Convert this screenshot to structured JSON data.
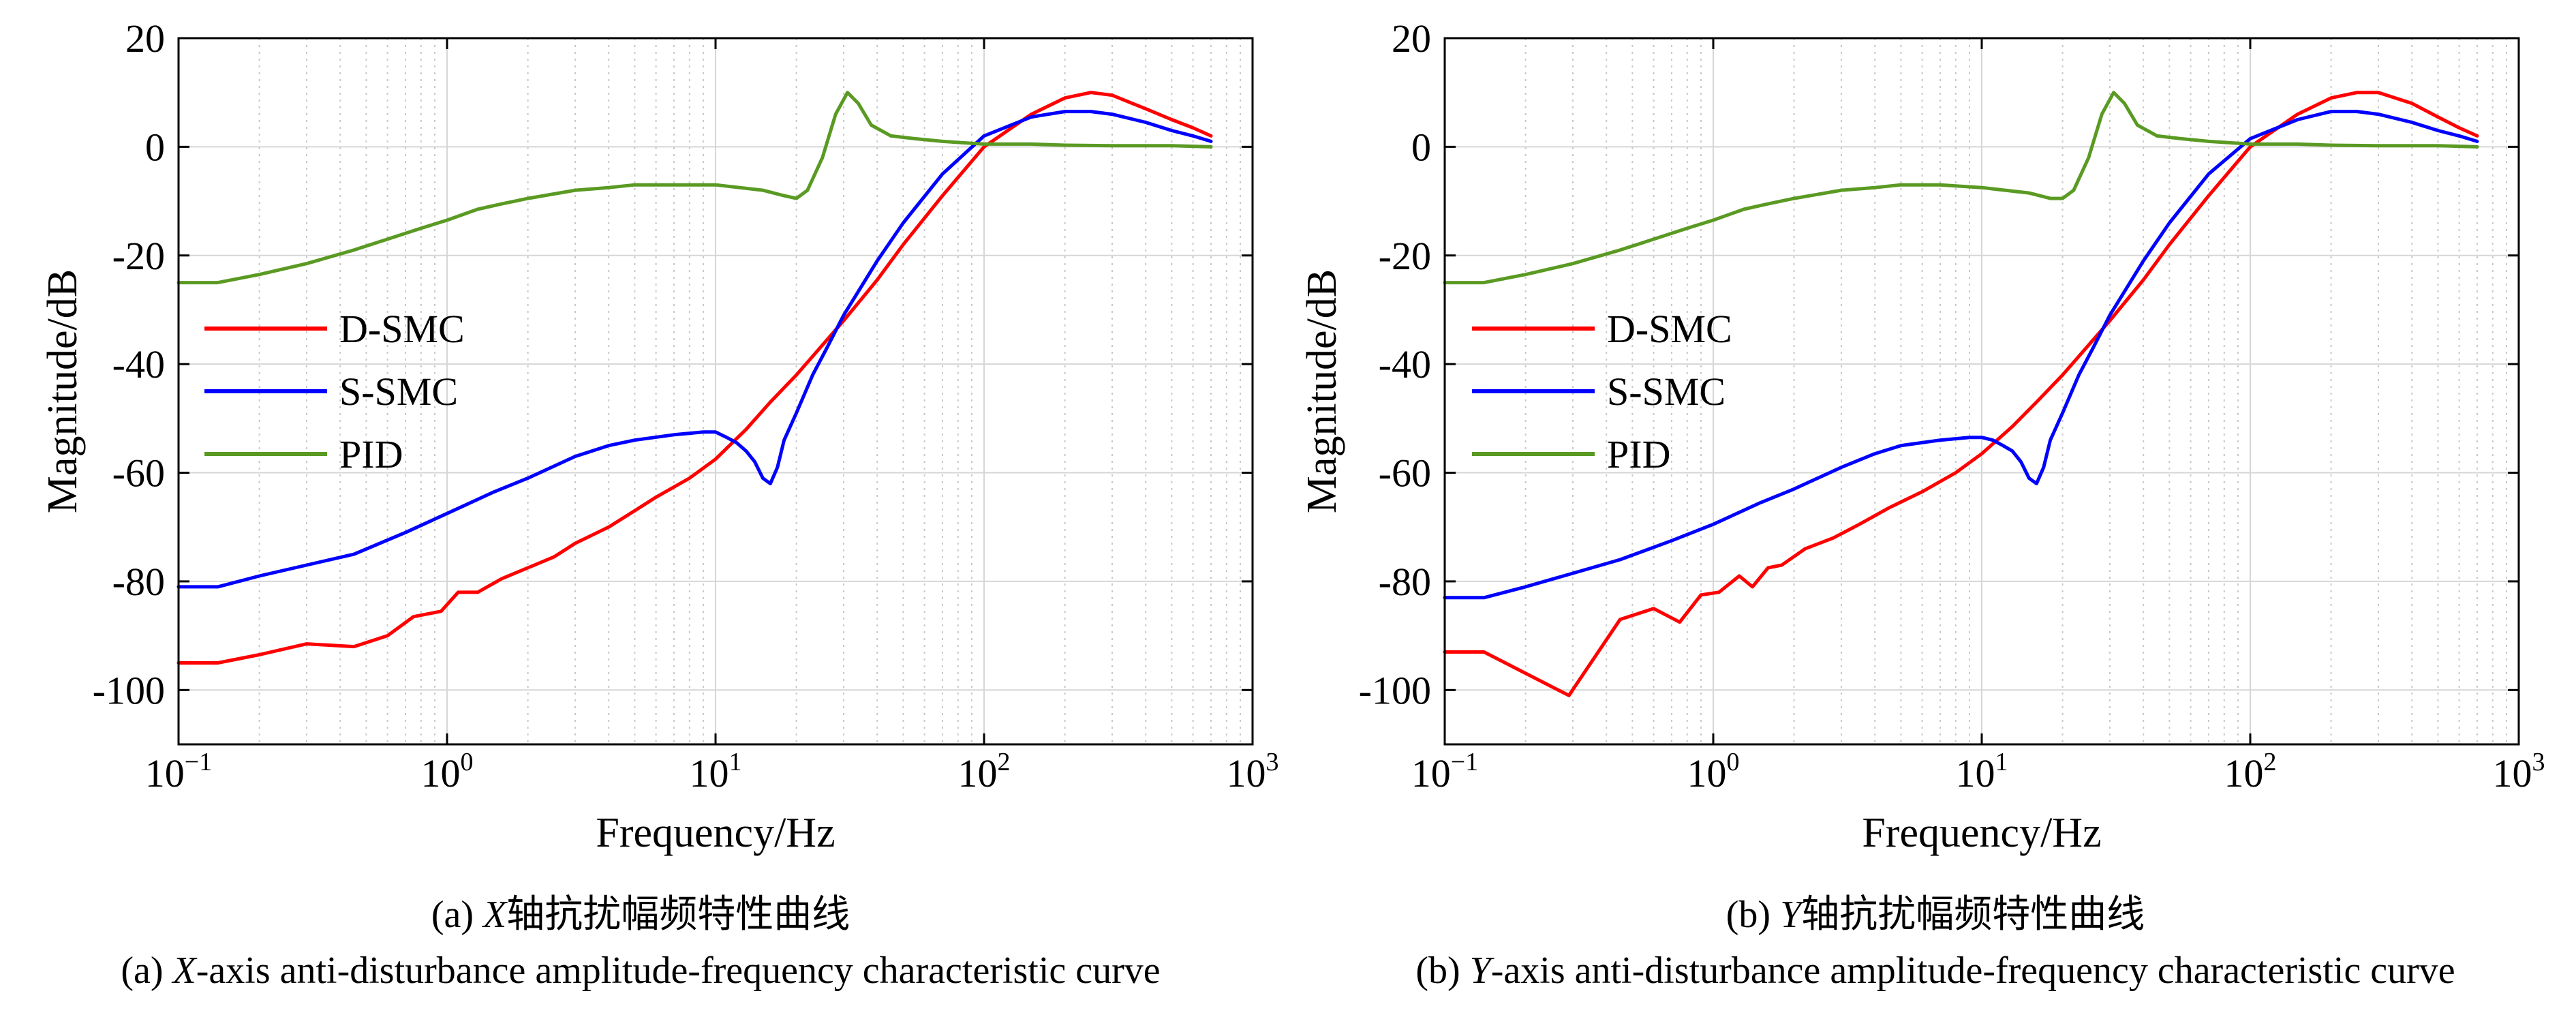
{
  "figures": [
    {
      "caption_cn_prefix": "(a) ",
      "caption_cn_axis": "X",
      "caption_cn_suffix": "轴抗扰幅频特性曲线",
      "caption_en_prefix": "(a) ",
      "caption_en_axis": "X",
      "caption_en_suffix": "-axis anti-disturbance amplitude-frequency characteristic curve"
    },
    {
      "caption_cn_prefix": "(b) ",
      "caption_cn_axis": "Y",
      "caption_cn_suffix": "轴抗扰幅频特性曲线",
      "caption_en_prefix": "(b) ",
      "caption_en_axis": "Y",
      "caption_en_suffix": "-axis anti-disturbance amplitude-frequency characteristic curve"
    }
  ],
  "chart_data": [
    {
      "type": "line",
      "title": "",
      "xlabel": "Frequency/Hz",
      "ylabel": "Magnitude/dB",
      "xscale": "log",
      "xlim": [
        0.1,
        1000
      ],
      "ylim": [
        -110,
        20
      ],
      "xticks": [
        0.1,
        1,
        10,
        100,
        1000
      ],
      "xtick_labels": [
        "10",
        "10",
        "10",
        "10",
        "10"
      ],
      "xtick_exponents": [
        "−1",
        "0",
        "1",
        "2",
        "3"
      ],
      "yticks": [
        20,
        0,
        -20,
        -40,
        -60,
        -80,
        -100
      ],
      "ytick_labels": [
        "20",
        "0",
        "-20",
        "-40",
        "-60",
        "-80",
        "-100"
      ],
      "grid": true,
      "legend_position": "left-middle",
      "series": [
        {
          "name": "D-SMC",
          "color": "#ff0000",
          "x": [
            0.1,
            0.14,
            0.2,
            0.3,
            0.45,
            0.6,
            0.75,
            0.95,
            1.1,
            1.3,
            1.6,
            2,
            2.5,
            3,
            4,
            5,
            6,
            8,
            10,
            13,
            16,
            20,
            25,
            30,
            40,
            50,
            70,
            100,
            150,
            200,
            250,
            300,
            400,
            500,
            600,
            700
          ],
          "y": [
            -95,
            -95,
            -93.5,
            -91.5,
            -92,
            -90,
            -86.5,
            -85.5,
            -82,
            -82,
            -79.5,
            -77.5,
            -75.5,
            -73,
            -70,
            -67,
            -64.5,
            -61,
            -57.5,
            -52,
            -47,
            -42,
            -36.5,
            -32,
            -24.5,
            -18,
            -9,
            0,
            6,
            9,
            10,
            9.5,
            7,
            5,
            3.5,
            2
          ]
        },
        {
          "name": "S-SMC",
          "color": "#0000ff",
          "x": [
            0.1,
            0.14,
            0.2,
            0.3,
            0.45,
            0.7,
            1,
            1.5,
            2,
            3,
            4,
            5,
            7,
            9,
            10,
            11,
            12,
            13,
            14,
            15,
            16,
            17,
            18,
            20,
            23,
            26,
            30,
            40,
            50,
            70,
            100,
            150,
            200,
            250,
            300,
            400,
            500,
            600,
            700
          ],
          "y": [
            -81,
            -81,
            -79,
            -77,
            -75,
            -71,
            -67.5,
            -63.5,
            -61,
            -57,
            -55,
            -54,
            -53,
            -52.5,
            -52.5,
            -53.5,
            -54.5,
            -56,
            -58,
            -61,
            -62,
            -59,
            -54,
            -49,
            -42,
            -37,
            -31,
            -21,
            -14,
            -5,
            2,
            5.5,
            6.5,
            6.5,
            6,
            4.5,
            3,
            2,
            1
          ]
        },
        {
          "name": "PID",
          "color": "#5a9a23",
          "x": [
            0.1,
            0.14,
            0.2,
            0.3,
            0.45,
            0.6,
            0.8,
            1,
            1.3,
            1.6,
            2,
            3,
            4,
            5,
            7,
            10,
            15,
            18,
            20,
            22,
            25,
            28,
            31,
            34,
            38,
            45,
            55,
            70,
            100,
            150,
            200,
            300,
            500,
            700
          ],
          "y": [
            -25,
            -25,
            -23.5,
            -21.5,
            -19,
            -17,
            -15,
            -13.5,
            -11.5,
            -10.5,
            -9.5,
            -8,
            -7.5,
            -7,
            -7,
            -7,
            -8,
            -9,
            -9.5,
            -8,
            -2,
            6,
            10,
            8,
            4,
            2,
            1.5,
            1,
            0.5,
            0.5,
            0.3,
            0.2,
            0.2,
            0
          ]
        }
      ]
    },
    {
      "type": "line",
      "title": "",
      "xlabel": "Frequency/Hz",
      "ylabel": "Magnitude/dB",
      "xscale": "log",
      "xlim": [
        0.1,
        1000
      ],
      "ylim": [
        -110,
        20
      ],
      "xticks": [
        0.1,
        1,
        10,
        100,
        1000
      ],
      "xtick_labels": [
        "10",
        "10",
        "10",
        "10",
        "10"
      ],
      "xtick_exponents": [
        "−1",
        "0",
        "1",
        "2",
        "3"
      ],
      "yticks": [
        20,
        0,
        -20,
        -40,
        -60,
        -80,
        -100
      ],
      "ytick_labels": [
        "20",
        "0",
        "-20",
        "-40",
        "-60",
        "-80",
        "-100"
      ],
      "grid": true,
      "legend_position": "left-middle",
      "series": [
        {
          "name": "D-SMC",
          "color": "#ff0000",
          "x": [
            0.1,
            0.14,
            0.29,
            0.45,
            0.6,
            0.75,
            0.9,
            1.05,
            1.25,
            1.4,
            1.6,
            1.8,
            2.2,
            2.8,
            3.5,
            4.5,
            6,
            8,
            10,
            13,
            16,
            20,
            25,
            30,
            40,
            50,
            70,
            100,
            150,
            200,
            250,
            300,
            400,
            500,
            600,
            700
          ],
          "y": [
            -93,
            -93,
            -101,
            -87,
            -85,
            -87.5,
            -82.5,
            -82,
            -79,
            -81,
            -77.5,
            -77,
            -74,
            -72,
            -69.5,
            -66.5,
            -63.5,
            -60,
            -56.5,
            -51.5,
            -47,
            -42,
            -36.5,
            -32,
            -24.5,
            -18,
            -9,
            0,
            6,
            9,
            10,
            10,
            8,
            5.5,
            3.5,
            2
          ]
        },
        {
          "name": "S-SMC",
          "color": "#0000ff",
          "x": [
            0.1,
            0.14,
            0.2,
            0.3,
            0.45,
            0.7,
            1,
            1.5,
            2,
            3,
            4,
            5,
            7,
            9,
            10,
            11,
            12,
            13,
            14,
            15,
            16,
            17,
            18,
            20,
            23,
            26,
            30,
            40,
            50,
            70,
            100,
            150,
            200,
            250,
            300,
            400,
            500,
            600,
            700
          ],
          "y": [
            -83,
            -83,
            -81,
            -78.5,
            -76,
            -72.5,
            -69.5,
            -65.5,
            -63,
            -59,
            -56.5,
            -55,
            -54,
            -53.5,
            -53.5,
            -54,
            -55,
            -56,
            -58,
            -61,
            -62,
            -59,
            -54,
            -49,
            -42,
            -37,
            -31,
            -21,
            -14,
            -5,
            1.5,
            5,
            6.5,
            6.5,
            6,
            4.5,
            3,
            2,
            1
          ]
        },
        {
          "name": "PID",
          "color": "#5a9a23",
          "x": [
            0.1,
            0.14,
            0.2,
            0.3,
            0.45,
            0.6,
            0.8,
            1,
            1.3,
            1.6,
            2,
            3,
            4,
            5,
            7,
            10,
            15,
            18,
            20,
            22,
            25,
            28,
            31,
            34,
            38,
            45,
            55,
            70,
            100,
            150,
            200,
            300,
            500,
            700
          ],
          "y": [
            -25,
            -25,
            -23.5,
            -21.5,
            -19,
            -17,
            -15,
            -13.5,
            -11.5,
            -10.5,
            -9.5,
            -8,
            -7.5,
            -7,
            -7,
            -7.5,
            -8.5,
            -9.5,
            -9.5,
            -8,
            -2,
            6,
            10,
            8,
            4,
            2,
            1.5,
            1,
            0.5,
            0.5,
            0.3,
            0.2,
            0.2,
            0
          ]
        }
      ]
    }
  ]
}
